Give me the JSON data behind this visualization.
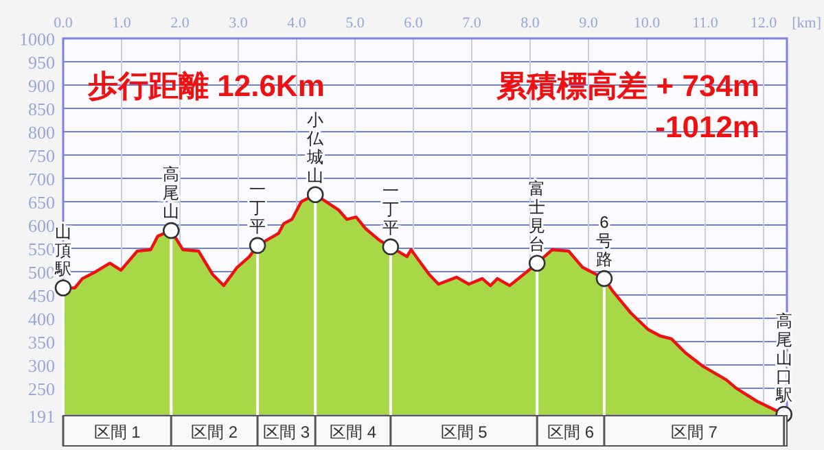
{
  "chart_data": {
    "type": "area",
    "xlabel": "[km]",
    "annotations": [
      "歩行距離  12.6Km",
      "累積標高差  +  734m",
      "-1012m",
      "区間 1",
      "区間 2",
      "区間 3",
      "区間 4",
      "区間 5",
      "区間 6",
      "区間 7"
    ],
    "x": [
      0.0,
      0.2,
      0.33,
      0.56,
      0.8,
      0.99,
      1.27,
      1.5,
      1.62,
      1.85,
      2.05,
      2.32,
      2.56,
      2.75,
      2.98,
      3.19,
      3.33,
      3.69,
      3.78,
      3.92,
      4.08,
      4.32,
      4.72,
      4.86,
      5.02,
      5.19,
      5.42,
      5.61,
      5.89,
      5.96,
      6.27,
      6.43,
      6.74,
      6.95,
      7.18,
      7.32,
      7.44,
      7.65,
      7.89,
      8.12,
      8.38,
      8.66,
      8.9,
      9.27,
      9.41,
      9.72,
      10.02,
      10.23,
      10.42,
      10.66,
      10.96,
      11.36,
      11.53,
      11.9,
      12.35
    ],
    "series": [
      {
        "color": "#a8d848",
        "values": [
          465,
          465,
          485,
          500,
          518,
          503,
          544,
          547,
          576,
          588,
          547,
          544,
          494,
          470,
          509,
          532,
          556,
          582,
          603,
          612,
          650,
          665,
          632,
          612,
          617,
          591,
          567,
          553,
          532,
          547,
          494,
          473,
          488,
          473,
          485,
          470,
          485,
          470,
          494,
          518,
          547,
          544,
          509,
          485,
          459,
          412,
          376,
          362,
          356,
          326,
          297,
          268,
          250,
          221,
          194
        ]
      },
      {
        "type": "line",
        "color": "#ee1111",
        "values": [
          465,
          465,
          485,
          500,
          518,
          503,
          544,
          547,
          576,
          588,
          547,
          544,
          494,
          470,
          509,
          532,
          556,
          582,
          603,
          612,
          650,
          665,
          632,
          612,
          617,
          591,
          567,
          553,
          532,
          547,
          494,
          473,
          488,
          473,
          485,
          470,
          485,
          470,
          494,
          518,
          547,
          544,
          509,
          485,
          459,
          412,
          376,
          362,
          356,
          326,
          297,
          268,
          250,
          221,
          194
        ]
      }
    ],
    "xlim": [
      0,
      12.4
    ],
    "ylim": [
      191,
      1000
    ],
    "xticks": [
      {
        "value": 0,
        "label": "0.0"
      },
      {
        "value": 1,
        "label": "1.0"
      },
      {
        "value": 2,
        "label": "2.0"
      },
      {
        "value": 3,
        "label": "3.0"
      },
      {
        "value": 4,
        "label": "4.0"
      },
      {
        "value": 5,
        "label": "5.0"
      },
      {
        "value": 6,
        "label": "6.0"
      },
      {
        "value": 7,
        "label": "7.0"
      },
      {
        "value": 8,
        "label": "8.0"
      },
      {
        "value": 9,
        "label": "9.0"
      },
      {
        "value": 10,
        "label": "10.0"
      },
      {
        "value": 11,
        "label": "11.0"
      },
      {
        "value": 12,
        "label": "12.0"
      }
    ],
    "yticks": [
      191,
      250,
      300,
      350,
      400,
      450,
      500,
      550,
      600,
      650,
      700,
      750,
      800,
      850,
      900,
      950,
      1000
    ],
    "grid": true,
    "ref_lines": [
      {
        "axis": "x",
        "value": 0,
        "label": "山頂駅"
      },
      {
        "axis": "x",
        "value": 1.85,
        "label": "高尾山"
      },
      {
        "axis": "x",
        "value": 3.33,
        "label": "一丁平"
      },
      {
        "axis": "x",
        "value": 4.32,
        "label": "小仏城山"
      },
      {
        "axis": "x",
        "value": 5.61,
        "label": "一丁平"
      },
      {
        "axis": "x",
        "value": 8.12,
        "label": "富士見台"
      },
      {
        "axis": "x",
        "value": 9.27,
        "label": "6号路"
      },
      {
        "axis": "x",
        "value": 12.35,
        "label": "高尾山口駅"
      }
    ]
  }
}
